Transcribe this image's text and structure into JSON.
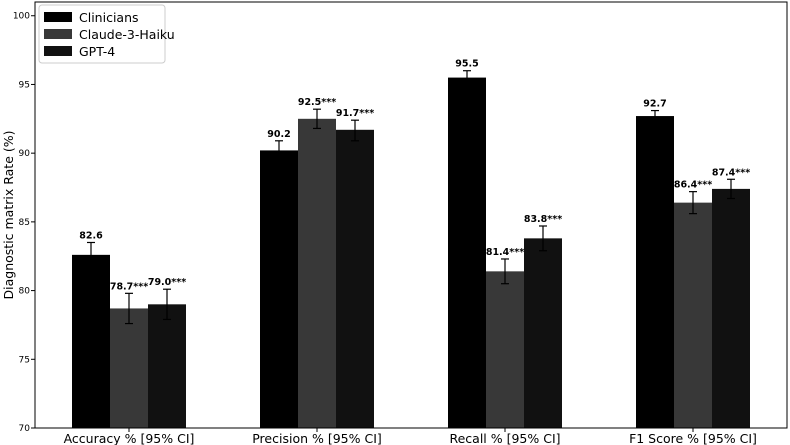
{
  "chart_data": {
    "type": "bar",
    "title": "",
    "xlabel": "",
    "ylabel": "Diagnostic matrix Rate (%)",
    "ylim": [
      70,
      101
    ],
    "yticks": [
      70,
      75,
      80,
      85,
      90,
      95,
      100
    ],
    "grid": false,
    "legend_position": "top-left",
    "categories": [
      "Accuracy % [95% CI]",
      "Precision % [95% CI]",
      "Recall % [95% CI]",
      "F1 Score % [95% CI]"
    ],
    "series": [
      {
        "name": "Clinicians",
        "color": "#000000",
        "values": [
          82.6,
          90.2,
          95.5,
          92.7
        ],
        "error_low": [
          81.7,
          89.5,
          95.0,
          92.3
        ],
        "error_high": [
          83.5,
          90.9,
          96.0,
          93.1
        ],
        "labels": [
          "82.6",
          "90.2",
          "95.5",
          "92.7"
        ]
      },
      {
        "name": "Claude-3-Haiku",
        "color": "#383838",
        "values": [
          78.7,
          92.5,
          81.4,
          86.4
        ],
        "error_low": [
          77.6,
          91.8,
          80.5,
          85.6
        ],
        "error_high": [
          79.8,
          93.2,
          82.3,
          87.2
        ],
        "labels": [
          "78.7***",
          "92.5***",
          "81.4***",
          "86.4***"
        ]
      },
      {
        "name": "GPT-4",
        "color": "#111111",
        "values": [
          79.0,
          91.7,
          83.8,
          87.4
        ],
        "error_low": [
          77.9,
          90.9,
          82.9,
          86.7
        ],
        "error_high": [
          80.1,
          92.4,
          84.7,
          88.1
        ],
        "labels": [
          "79.0***",
          "91.7***",
          "83.8***",
          "87.4***"
        ]
      }
    ]
  }
}
